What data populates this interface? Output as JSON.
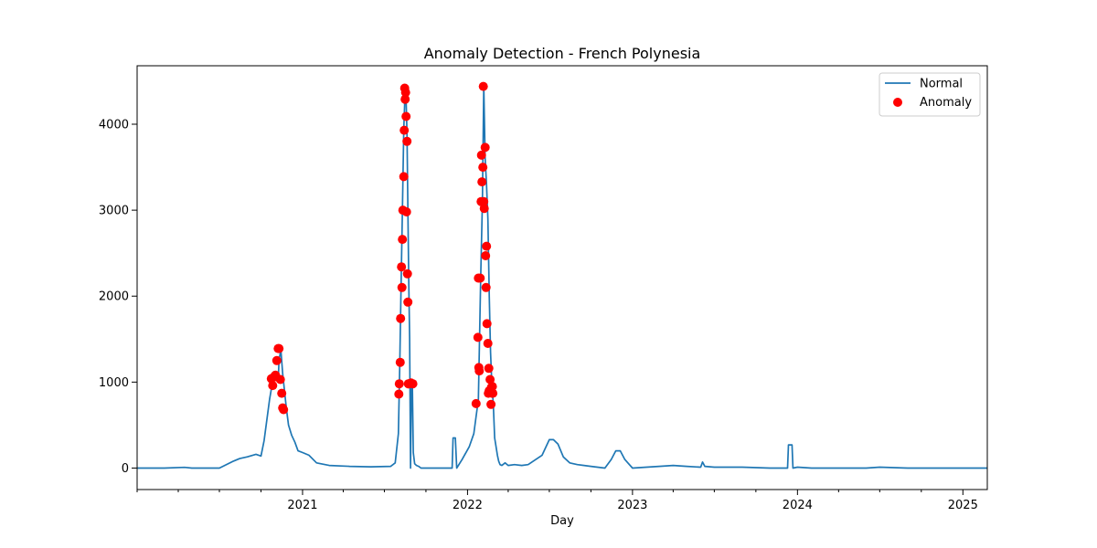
{
  "chart_data": {
    "type": "line",
    "title": "Anomaly Detection - French Polynesia",
    "xlabel": "Day",
    "ylabel": "",
    "xlim": [
      "2020-01-01",
      "2025-02-24"
    ],
    "ylim": [
      -250,
      4680
    ],
    "x_ticks": [
      {
        "date": "2021-01-01",
        "label": "2021"
      },
      {
        "date": "2022-01-01",
        "label": "2022"
      },
      {
        "date": "2023-01-01",
        "label": "2023"
      },
      {
        "date": "2024-01-01",
        "label": "2024"
      },
      {
        "date": "2025-01-01",
        "label": "2025"
      }
    ],
    "y_ticks": [
      0,
      1000,
      2000,
      3000,
      4000
    ],
    "grid": false,
    "legend": "top-right",
    "colors": {
      "normal": "#1f77b4",
      "anomaly": "#ff0000"
    },
    "series": [
      {
        "name": "Normal",
        "kind": "line",
        "x": [
          "2020-01-01",
          "2020-03-01",
          "2020-04-15",
          "2020-05-01",
          "2020-07-01",
          "2020-08-01",
          "2020-08-15",
          "2020-09-01",
          "2020-09-20",
          "2020-10-01",
          "2020-10-08",
          "2020-10-15",
          "2020-10-20",
          "2020-10-26",
          "2020-11-01",
          "2020-11-04",
          "2020-11-08",
          "2020-11-10",
          "2020-11-14",
          "2020-11-18",
          "2020-11-22",
          "2020-11-26",
          "2020-12-01",
          "2020-12-08",
          "2020-12-15",
          "2020-12-22",
          "2021-01-01",
          "2021-01-15",
          "2021-02-01",
          "2021-03-01",
          "2021-04-15",
          "2021-06-01",
          "2021-07-15",
          "2021-07-25",
          "2021-08-01",
          "2021-08-04",
          "2021-08-07",
          "2021-08-10",
          "2021-08-13",
          "2021-08-16",
          "2021-08-18",
          "2021-08-20",
          "2021-08-22",
          "2021-08-24",
          "2021-08-26",
          "2021-08-28",
          "2021-08-30",
          "2021-09-01",
          "2021-09-03",
          "2021-09-06",
          "2021-09-10",
          "2021-09-15",
          "2021-09-20",
          "2021-09-25",
          "2021-10-15",
          "2021-11-10",
          "2021-11-28",
          "2021-11-30",
          "2021-12-05",
          "2021-12-08",
          "2021-12-20",
          "2022-01-05",
          "2022-01-15",
          "2022-01-25",
          "2022-01-30",
          "2022-02-03",
          "2022-02-06",
          "2022-02-09",
          "2022-02-12",
          "2022-02-15",
          "2022-02-18",
          "2022-02-21",
          "2022-02-24",
          "2022-02-27",
          "2022-03-02",
          "2022-03-05",
          "2022-03-08",
          "2022-03-11",
          "2022-03-14",
          "2022-03-18",
          "2022-03-25",
          "2022-04-01",
          "2022-04-15",
          "2022-05-01",
          "2022-05-15",
          "2022-06-01",
          "2022-06-15",
          "2022-07-01",
          "2022-07-10",
          "2022-07-20",
          "2022-08-01",
          "2022-08-15",
          "2022-09-01",
          "2022-10-01",
          "2022-11-01",
          "2022-11-15",
          "2022-11-25",
          "2022-12-05",
          "2022-12-15",
          "2023-01-01",
          "2023-02-01",
          "2023-03-01",
          "2023-04-01",
          "2023-05-01",
          "2023-06-01",
          "2023-06-05",
          "2023-06-10",
          "2023-07-01",
          "2023-09-01",
          "2023-11-01",
          "2023-12-10",
          "2023-12-12",
          "2023-12-20",
          "2023-12-22",
          "2024-01-01",
          "2024-02-01",
          "2024-04-01",
          "2024-06-01",
          "2024-07-01",
          "2024-09-01",
          "2024-12-01",
          "2025-02-24"
        ],
        "y": [
          0,
          0,
          8,
          0,
          0,
          80,
          110,
          130,
          160,
          140,
          320,
          600,
          800,
          980,
          1050,
          1100,
          1000,
          1250,
          1380,
          1100,
          900,
          700,
          500,
          380,
          300,
          200,
          180,
          150,
          60,
          30,
          20,
          15,
          20,
          60,
          400,
          1200,
          2100,
          3000,
          3950,
          4400,
          4300,
          3900,
          3000,
          2200,
          1500,
          0,
          1000,
          950,
          180,
          50,
          30,
          20,
          0,
          0,
          0,
          0,
          0,
          350,
          350,
          0,
          100,
          250,
          400,
          800,
          2200,
          3100,
          4450,
          3600,
          3300,
          2900,
          2000,
          1350,
          950,
          750,
          350,
          250,
          150,
          80,
          40,
          30,
          60,
          30,
          40,
          30,
          40,
          100,
          150,
          330,
          330,
          280,
          130,
          60,
          40,
          20,
          0,
          100,
          200,
          200,
          100,
          0,
          10,
          20,
          30,
          20,
          10,
          70,
          20,
          10,
          10,
          0,
          0,
          270,
          270,
          0,
          10,
          0,
          0,
          0,
          10,
          0,
          0,
          0
        ]
      },
      {
        "name": "Anomaly",
        "kind": "scatter",
        "x": [
          "2020-10-24",
          "2020-10-27",
          "2020-10-30",
          "2020-11-02",
          "2020-11-05",
          "2020-11-08",
          "2020-11-10",
          "2020-11-13",
          "2020-11-16",
          "2020-11-18",
          "2020-11-20",
          "2021-08-02",
          "2021-08-03",
          "2021-08-05",
          "2021-08-06",
          "2021-08-08",
          "2021-08-09",
          "2021-08-10",
          "2021-08-11",
          "2021-08-13",
          "2021-08-14",
          "2021-08-15",
          "2021-08-16",
          "2021-08-17",
          "2021-08-18",
          "2021-08-19",
          "2021-08-20",
          "2021-08-21",
          "2021-08-22",
          "2021-08-23",
          "2021-08-24",
          "2021-08-29",
          "2021-09-02",
          "2022-01-20",
          "2022-01-24",
          "2022-01-25",
          "2022-01-26",
          "2022-01-27",
          "2022-01-29",
          "2022-01-31",
          "2022-02-01",
          "2022-02-02",
          "2022-02-04",
          "2022-02-05",
          "2022-02-06",
          "2022-02-07",
          "2022-02-09",
          "2022-02-10",
          "2022-02-11",
          "2022-02-12",
          "2022-02-13",
          "2022-02-15",
          "2022-02-16",
          "2022-02-17",
          "2022-02-18",
          "2022-02-20",
          "2022-02-22",
          "2022-02-23",
          "2022-02-24",
          "2022-02-25",
          "2022-02-26"
        ],
        "y": [
          1040,
          960,
          1060,
          1080,
          1250,
          1390,
          1390,
          1030,
          870,
          700,
          680,
          860,
          980,
          1230,
          1740,
          2340,
          2100,
          2660,
          3000,
          3390,
          3930,
          4420,
          4290,
          4370,
          4090,
          2980,
          3800,
          2260,
          1930,
          980,
          980,
          990,
          980,
          750,
          1520,
          2210,
          1170,
          1130,
          2210,
          3100,
          3640,
          3330,
          3500,
          4440,
          3100,
          3020,
          3730,
          2470,
          2100,
          2580,
          1680,
          1450,
          870,
          1160,
          900,
          1030,
          740,
          940,
          870,
          950,
          870
        ]
      }
    ]
  }
}
